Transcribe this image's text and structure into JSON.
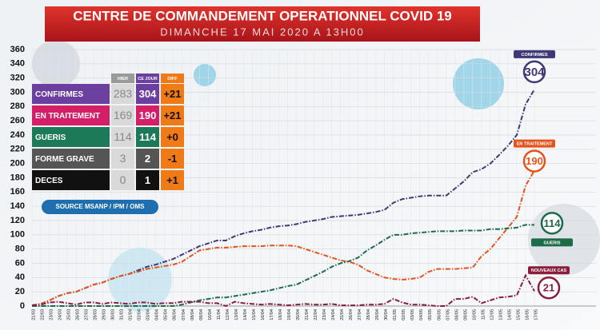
{
  "chart_data": {
    "type": "line",
    "title": "CENTRE DE COMMANDEMENT OPERATIONNEL COVID 19",
    "subtitle": "DIMANCHE 17 MAI 2020 A 13H00",
    "categories": [
      "21/03",
      "22/03",
      "23/03",
      "24/03",
      "25/03",
      "26/03",
      "27/03",
      "28/03",
      "29/03",
      "30/03",
      "31/03",
      "01/04",
      "02/04",
      "03/04",
      "04/04",
      "05/04",
      "06/04",
      "07/04",
      "08/04",
      "09/04",
      "10/04",
      "11/04",
      "12/04",
      "13/04",
      "14/04",
      "15/04",
      "16/04",
      "17/04",
      "18/04",
      "19/04",
      "20/04",
      "21/04",
      "22/04",
      "23/04",
      "24/04",
      "25/04",
      "26/04",
      "27/04",
      "28/04",
      "29/04",
      "30/04",
      "01/05",
      "02/05",
      "03/05",
      "04/05",
      "05/05",
      "06/05",
      "07/05",
      "08/05",
      "09/05",
      "10/05",
      "11/05",
      "12/05",
      "13/05",
      "14/05",
      "15/05",
      "16/05",
      "17/05"
    ],
    "series": [
      {
        "name": "CONFIRMES",
        "color": "#3e3a78",
        "values": [
          1,
          3,
          8,
          14,
          18,
          20,
          25,
          30,
          33,
          38,
          42,
          45,
          50,
          55,
          58,
          62,
          66,
          72,
          78,
          84,
          88,
          92,
          92,
          98,
          102,
          105,
          107,
          110,
          112,
          113,
          115,
          118,
          120,
          122,
          125,
          126,
          127,
          128,
          130,
          132,
          135,
          145,
          150,
          152,
          154,
          155,
          155,
          155,
          165,
          175,
          188,
          192,
          200,
          212,
          225,
          240,
          283,
          304
        ]
      },
      {
        "name": "EN TRAITEMENT",
        "color": "#e4531c",
        "values": [
          1,
          3,
          8,
          14,
          18,
          20,
          25,
          30,
          33,
          38,
          42,
          45,
          48,
          52,
          54,
          56,
          58,
          62,
          70,
          78,
          80,
          82,
          82,
          83,
          84,
          84,
          84,
          85,
          85,
          85,
          84,
          80,
          76,
          72,
          68,
          64,
          62,
          58,
          50,
          45,
          40,
          38,
          37,
          38,
          40,
          48,
          52,
          52,
          52,
          53,
          54,
          70,
          80,
          95,
          110,
          125,
          169,
          190
        ]
      },
      {
        "name": "GUERIS",
        "color": "#1d6b48",
        "values": [
          0,
          0,
          0,
          0,
          0,
          0,
          0,
          0,
          0,
          0,
          0,
          0,
          0,
          0,
          0,
          0,
          0,
          2,
          5,
          8,
          10,
          12,
          12,
          14,
          16,
          18,
          20,
          22,
          25,
          28,
          30,
          36,
          42,
          48,
          55,
          60,
          63,
          68,
          78,
          85,
          93,
          100,
          100,
          102,
          103,
          104,
          105,
          105,
          105,
          106,
          106,
          106,
          108,
          108,
          109,
          110,
          114,
          114
        ]
      },
      {
        "name": "NOUVEAUX CAS",
        "color": "#8a1d3c",
        "values": [
          1,
          2,
          5,
          6,
          4,
          2,
          5,
          5,
          3,
          5,
          4,
          3,
          5,
          5,
          3,
          4,
          4,
          6,
          6,
          6,
          4,
          4,
          0,
          6,
          4,
          3,
          2,
          3,
          2,
          1,
          2,
          3,
          2,
          2,
          3,
          1,
          1,
          1,
          2,
          2,
          3,
          10,
          5,
          2,
          2,
          1,
          0,
          0,
          10,
          10,
          13,
          4,
          8,
          12,
          13,
          15,
          43,
          21
        ]
      }
    ],
    "ylim": [
      0,
      360
    ],
    "yticks": [
      0,
      20,
      40,
      60,
      80,
      100,
      120,
      140,
      160,
      180,
      200,
      220,
      240,
      260,
      280,
      300,
      320,
      340,
      360
    ],
    "grid": true
  },
  "table": {
    "columns": [
      "HIER",
      "CE JOUR",
      "DIFF"
    ],
    "rows": [
      {
        "label": "CONFIRMES",
        "hier": 283,
        "ce_jour": 304,
        "diff": "+21"
      },
      {
        "label": "EN TRAITEMENT",
        "hier": 169,
        "ce_jour": 190,
        "diff": "+21"
      },
      {
        "label": "GUERIS",
        "hier": 114,
        "ce_jour": 114,
        "diff": "+0"
      },
      {
        "label": "FORME GRAVE",
        "hier": 3,
        "ce_jour": 2,
        "diff": "-1"
      },
      {
        "label": "DECES",
        "hier": 0,
        "ce_jour": 1,
        "diff": "+1"
      }
    ],
    "source": "SOURCE MSANP / IPM / OMS"
  }
}
